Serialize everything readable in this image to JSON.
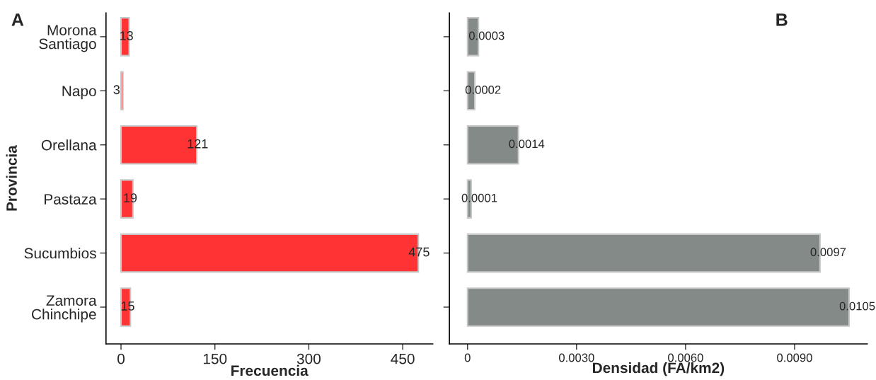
{
  "chart_data": [
    {
      "type": "bar",
      "orientation": "horizontal",
      "categories": [
        "Morona\nSantiago",
        "Napo",
        "Orellana",
        "Pastaza",
        "Sucumbios",
        "Zamora\nChinchipe"
      ],
      "values": [
        13,
        3,
        121,
        19,
        475,
        15
      ],
      "color": "#ff3333",
      "data_labels": true,
      "xlabel": "Frecuencia",
      "ylabel": "Provincia",
      "xlim": [
        -24,
        498
      ],
      "xticks": [
        0,
        150,
        300,
        450
      ],
      "grid": false,
      "annotations": [
        "A"
      ]
    },
    {
      "type": "bar",
      "orientation": "horizontal",
      "categories": [
        null,
        null,
        null,
        null,
        null,
        null
      ],
      "values": [
        0.0003,
        0.0002,
        0.0014,
        0.0001,
        0.0097,
        0.0105
      ],
      "color": "#838a88",
      "data_labels": true,
      "xlabel": "Densidad (FA/km2)",
      "xlim": [
        -0.0005,
        0.011
      ],
      "xticks": [
        0,
        {
          "value": 0.003,
          "label": "0.0030"
        },
        {
          "value": 0.006,
          "label": "0.0060"
        },
        {
          "value": 0.009,
          "label": "0.0090"
        }
      ],
      "tick_labels": "x",
      "grid": false,
      "annotations": [
        "B"
      ]
    }
  ]
}
